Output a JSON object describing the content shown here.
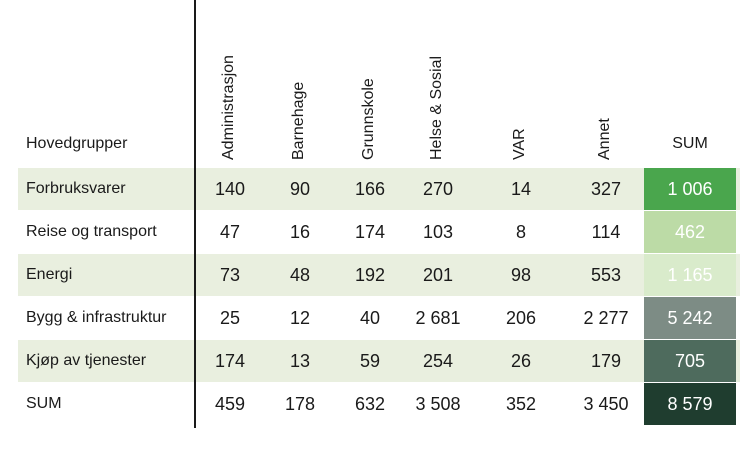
{
  "chart_data": {
    "type": "table",
    "corner_header": "Hovedgrupper",
    "columns": [
      "Administrasjon",
      "Barnehage",
      "Grunnskole",
      "Helse & Sosial",
      "VAR",
      "Annet"
    ],
    "sum_header": "SUM",
    "rows": [
      {
        "label": "Forbruksvarer",
        "values": [
          "140",
          "90",
          "166",
          "270",
          "14",
          "327"
        ],
        "sum": "1 006",
        "sum_value": 1006
      },
      {
        "label": "Reise og transport",
        "values": [
          "47",
          "16",
          "174",
          "103",
          "8",
          "114"
        ],
        "sum": "462",
        "sum_value": 462
      },
      {
        "label": "Energi",
        "values": [
          "73",
          "48",
          "192",
          "201",
          "98",
          "553"
        ],
        "sum": "1 165",
        "sum_value": 1165
      },
      {
        "label": "Bygg & infrastruktur",
        "values": [
          "25",
          "12",
          "40",
          "2 681",
          "206",
          "2 277"
        ],
        "sum": "5 242",
        "sum_value": 5242
      },
      {
        "label": "Kjøp av tjenester",
        "values": [
          "174",
          "13",
          "59",
          "254",
          "26",
          "179"
        ],
        "sum": "705",
        "sum_value": 705
      },
      {
        "label": "SUM",
        "values": [
          "459",
          "178",
          "632",
          "3 508",
          "352",
          "3 450"
        ],
        "sum": "8 579",
        "sum_value": 8579
      }
    ],
    "colors": {
      "band": "#e9efdf",
      "sum_fills": [
        "#4aa64d",
        "#bcdba6",
        "#d9ebcb",
        "#7d8c85",
        "#4e6b5d",
        "#1f3d2f"
      ],
      "sum_text": "#ffffff"
    }
  }
}
